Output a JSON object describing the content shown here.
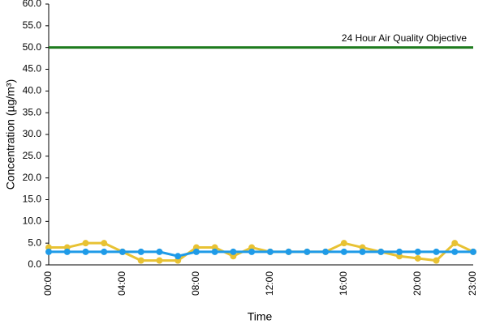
{
  "chart_data": {
    "type": "line",
    "y_label": "Concentration (µg/m³)",
    "x_label": "Time",
    "categories": [
      "00:00",
      null,
      null,
      null,
      "04:00",
      null,
      null,
      null,
      "08:00",
      null,
      null,
      null,
      "12:00",
      null,
      null,
      null,
      "16:00",
      null,
      null,
      null,
      "20:00",
      null,
      null,
      "23:00"
    ],
    "series": [
      {
        "color": "#e8c233",
        "values": [
          4,
          4,
          5,
          5,
          3,
          1,
          1,
          1,
          4,
          4,
          2,
          4,
          3,
          3,
          3,
          3,
          5,
          4,
          3,
          2,
          1.5,
          1,
          5,
          3
        ]
      },
      {
        "color": "#1f9be8",
        "values": [
          3,
          3,
          3,
          3,
          3,
          3,
          3,
          2,
          3,
          3,
          3,
          3,
          3,
          3,
          3,
          3,
          3,
          3,
          3,
          3,
          3,
          3,
          3,
          3
        ]
      }
    ],
    "reference_lines": [
      {
        "value": 50,
        "label": "24 Hour Air Quality Objective",
        "color": "#1e7b1e"
      }
    ],
    "ylim": [
      0,
      60
    ],
    "yticks": [
      {
        "value": 0,
        "label": "0.0"
      },
      {
        "value": 5,
        "label": "5.0"
      },
      {
        "value": 10,
        "label": "10.0"
      },
      {
        "value": 15,
        "label": "15.0"
      },
      {
        "value": 20,
        "label": "20.0"
      },
      {
        "value": 25,
        "label": "25.0"
      },
      {
        "value": 30,
        "label": "30.0"
      },
      {
        "value": 35,
        "label": "35.0"
      },
      {
        "value": 40,
        "label": "40.0"
      },
      {
        "value": 45,
        "label": "45.0"
      },
      {
        "value": 50,
        "label": "50.0"
      },
      {
        "value": 55,
        "label": "55.0"
      },
      {
        "value": 60,
        "label": "60.0"
      }
    ],
    "grid": false
  }
}
